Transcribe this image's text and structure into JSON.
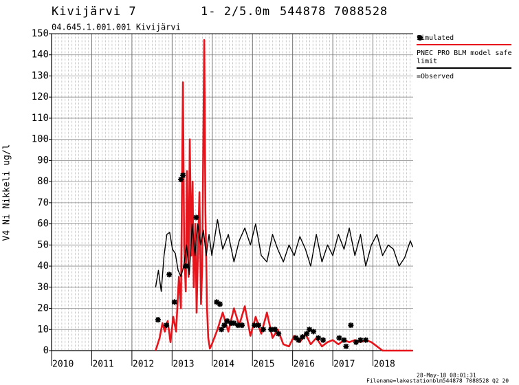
{
  "chart_data": {
    "type": "line",
    "title": "Kivijärvi 7",
    "depth": "1- 2/5.0m",
    "coordinates": "544878 7088528",
    "subtitle": "04.645.1.001.001 Kivijärvi",
    "ylabel": "V4 Ni Nikkeli ug/l",
    "timestamp": "28-May-18 08:01:31",
    "filename": "Filename=lakestationblm544878 7088528 Q2 20",
    "xlim": [
      2010,
      2019
    ],
    "xticks": [
      2010,
      2011,
      2012,
      2013,
      2014,
      2015,
      2016,
      2017,
      2018
    ],
    "ylim": [
      0,
      150
    ],
    "yticks": [
      0,
      10,
      20,
      30,
      40,
      50,
      60,
      70,
      80,
      90,
      100,
      110,
      120,
      130,
      140,
      150
    ],
    "grid": true,
    "series": [
      {
        "name": "Simulated",
        "type": "line",
        "color": "#e8141c",
        "x": [
          2012.59,
          2012.69,
          2012.76,
          2012.82,
          2012.89,
          2012.96,
          2013.03,
          2013.1,
          2013.17,
          2013.22,
          2013.27,
          2013.3,
          2013.34,
          2013.37,
          2013.41,
          2013.44,
          2013.48,
          2013.51,
          2013.54,
          2013.58,
          2013.61,
          2013.65,
          2013.68,
          2013.72,
          2013.75,
          2013.8,
          2013.83,
          2013.87,
          2013.9,
          2013.94,
          2013.99,
          2014.13,
          2014.26,
          2014.4,
          2014.54,
          2014.67,
          2014.81,
          2014.95,
          2015.08,
          2015.22,
          2015.36,
          2015.5,
          2015.63,
          2015.77,
          2015.91,
          2016.04,
          2016.18,
          2016.32,
          2016.45,
          2016.59,
          2016.73,
          2016.87,
          2017.0,
          2017.14,
          2017.28,
          2017.41,
          2017.55,
          2017.69,
          2017.82,
          2017.96,
          2018.1,
          2018.24,
          2018.99
        ],
        "values": [
          0,
          6,
          13,
          9,
          14,
          4,
          16,
          9,
          35,
          20,
          127,
          50,
          28,
          85,
          35,
          100,
          45,
          80,
          30,
          60,
          18,
          52,
          75,
          22,
          40,
          147,
          65,
          20,
          6,
          1,
          3,
          10,
          18,
          9,
          20,
          12,
          21,
          7,
          16,
          8,
          18,
          6,
          10,
          3,
          2,
          7,
          4,
          8,
          3,
          6,
          2,
          4,
          5,
          3,
          5,
          4,
          5,
          4,
          5,
          4,
          2,
          0,
          0
        ]
      },
      {
        "name": "PNEC PRO BLM model safe limit",
        "type": "line",
        "color": "#000000",
        "x": [
          2012.59,
          2012.66,
          2012.73,
          2012.8,
          2012.87,
          2012.94,
          2013.01,
          2013.08,
          2013.15,
          2013.22,
          2013.29,
          2013.36,
          2013.43,
          2013.5,
          2013.57,
          2013.64,
          2013.71,
          2013.78,
          2013.85,
          2013.92,
          2013.99,
          2014.13,
          2014.26,
          2014.4,
          2014.54,
          2014.67,
          2014.81,
          2014.95,
          2015.08,
          2015.22,
          2015.36,
          2015.5,
          2015.63,
          2015.77,
          2015.91,
          2016.04,
          2016.18,
          2016.32,
          2016.45,
          2016.59,
          2016.73,
          2016.87,
          2017.0,
          2017.14,
          2017.28,
          2017.41,
          2017.55,
          2017.69,
          2017.82,
          2017.96,
          2018.1,
          2018.24,
          2018.38,
          2018.51,
          2018.65,
          2018.79,
          2018.93,
          2018.99
        ],
        "values": [
          30,
          38,
          28,
          45,
          55,
          56,
          48,
          46,
          38,
          35,
          40,
          50,
          36,
          60,
          45,
          60,
          50,
          57,
          45,
          55,
          45,
          62,
          48,
          55,
          42,
          52,
          58,
          50,
          60,
          45,
          42,
          55,
          48,
          42,
          50,
          45,
          54,
          48,
          40,
          55,
          42,
          50,
          45,
          55,
          48,
          58,
          45,
          55,
          40,
          50,
          55,
          45,
          50,
          48,
          40,
          44,
          52,
          49
        ]
      },
      {
        "name": "=Observed",
        "type": "scatter",
        "color": "#000000",
        "x": [
          2012.65,
          2012.86,
          2012.93,
          2013.06,
          2013.22,
          2013.27,
          2013.34,
          2013.6,
          2014.11,
          2014.19,
          2014.23,
          2014.3,
          2014.37,
          2014.47,
          2014.54,
          2014.64,
          2014.74,
          2015.05,
          2015.15,
          2015.27,
          2015.46,
          2015.56,
          2015.65,
          2016.08,
          2016.15,
          2016.25,
          2016.35,
          2016.42,
          2016.52,
          2016.64,
          2016.76,
          2017.16,
          2017.28,
          2017.33,
          2017.45,
          2017.58,
          2017.69,
          2017.82
        ],
        "values": [
          14.6,
          12,
          36,
          23,
          81,
          83,
          40,
          63,
          23,
          22,
          10,
          12,
          14,
          13,
          13,
          12,
          12,
          12,
          12,
          10,
          10,
          10,
          8,
          6,
          5,
          6.5,
          8,
          10,
          9,
          6,
          5,
          6,
          5,
          2,
          12,
          4,
          5,
          5
        ]
      }
    ]
  }
}
